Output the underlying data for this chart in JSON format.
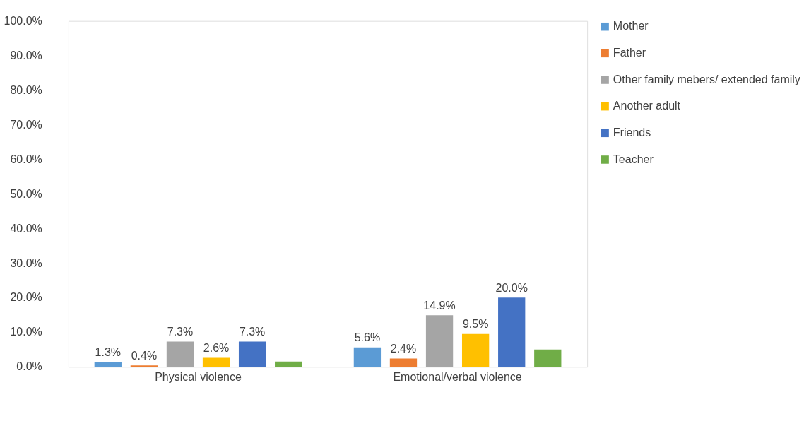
{
  "chart_data": {
    "type": "bar",
    "categories": [
      "Physical violence",
      "Emotional/verbal violence"
    ],
    "series": [
      {
        "name": "Mother",
        "color": "#5b9bd5",
        "values": [
          1.3,
          5.6
        ],
        "value_labels": [
          "1.3%",
          "5.6%"
        ]
      },
      {
        "name": "Father",
        "color": "#ed7d31",
        "values": [
          0.4,
          2.4
        ],
        "value_labels": [
          "0.4%",
          "2.4%"
        ]
      },
      {
        "name": "Other family mebers/ extended family",
        "color": "#a5a5a5",
        "values": [
          7.3,
          14.9
        ],
        "value_labels": [
          "7.3%",
          "14.9%"
        ]
      },
      {
        "name": "Another adult",
        "color": "#ffc000",
        "values": [
          2.6,
          9.5
        ],
        "value_labels": [
          "2.6%",
          "9.5%"
        ]
      },
      {
        "name": "Friends",
        "color": "#4472c4",
        "values": [
          7.3,
          20.0
        ],
        "value_labels": [
          "7.3%",
          "20.0%"
        ]
      },
      {
        "name": "Teacher",
        "color": "#70ad47",
        "values": [
          1.5,
          5.0
        ],
        "value_labels": [
          null,
          null
        ]
      }
    ],
    "ylim": [
      0,
      100
    ],
    "yticks": [
      {
        "value": 0,
        "label": "0.0%"
      },
      {
        "value": 10,
        "label": "10.0%"
      },
      {
        "value": 20,
        "label": "20.0%"
      },
      {
        "value": 30,
        "label": "30.0%"
      },
      {
        "value": 40,
        "label": "40.0%"
      },
      {
        "value": 50,
        "label": "50.0%"
      },
      {
        "value": 60,
        "label": "60.0%"
      },
      {
        "value": 70,
        "label": "70.0%"
      },
      {
        "value": 80,
        "label": "80.0%"
      },
      {
        "value": 90,
        "label": "90.0%"
      },
      {
        "value": 100,
        "label": "100.0%"
      }
    ],
    "grid": false,
    "legend": "right"
  }
}
